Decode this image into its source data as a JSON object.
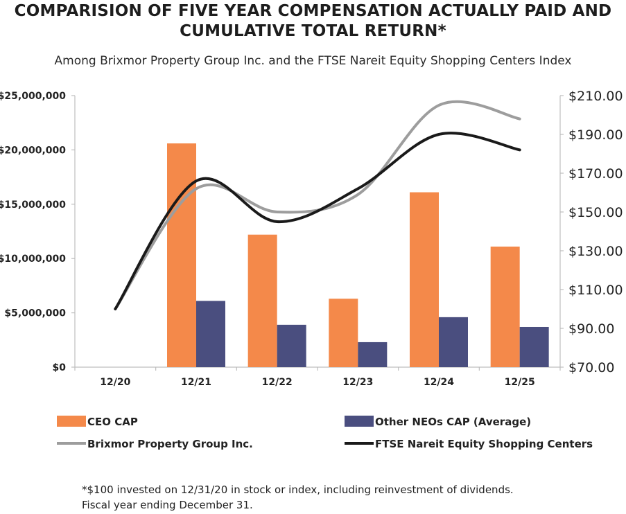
{
  "title_line1": "COMPARISION OF FIVE YEAR COMPENSATION ACTUALLY PAID AND",
  "title_line2": "CUMULATIVE TOTAL RETURN*",
  "subtitle": "Among Brixmor Property Group Inc. and the FTSE Nareit Equity Shopping Centers Index",
  "footnote_line1": "*$100 invested on 12/31/20 in stock or index, including reinvestment of dividends.",
  "footnote_line2": "Fiscal year ending December 31.",
  "chart_data": {
    "type": "bar",
    "title": "COMPARISION OF FIVE YEAR COMPENSATION ACTUALLY PAID AND CUMULATIVE TOTAL RETURN*",
    "categories": [
      "12/20",
      "12/21",
      "12/22",
      "12/23",
      "12/24",
      "12/25"
    ],
    "left_axis": {
      "ylim": [
        0,
        25000000
      ],
      "ticks": [
        0,
        5000000,
        10000000,
        15000000,
        20000000,
        25000000
      ],
      "tick_labels": [
        "$0",
        "$5,000,000",
        "$10,000,000",
        "$15,000,000",
        "$20,000,000",
        "$25,000,000"
      ]
    },
    "right_axis": {
      "ylim": [
        70,
        210
      ],
      "ticks": [
        70,
        90,
        110,
        130,
        150,
        170,
        190,
        210
      ],
      "tick_labels": [
        "$70.00",
        "$90.00",
        "$110.00",
        "$130.00",
        "$150.00",
        "$170.00",
        "$190.00",
        "$210.00"
      ]
    },
    "bar_series": [
      {
        "name": "CEO CAP",
        "color": "#f4894a",
        "values": [
          null,
          20600000,
          12200000,
          6300000,
          16100000,
          11100000
        ]
      },
      {
        "name": "Other NEOs CAP (Average)",
        "color": "#4a4e7f",
        "values": [
          null,
          6100000,
          3900000,
          2300000,
          4600000,
          3700000
        ]
      }
    ],
    "line_series": [
      {
        "name": "Brixmor Property Group Inc.",
        "color": "#9d9d9d",
        "values": [
          100,
          162,
          150,
          159,
          205,
          198
        ]
      },
      {
        "name": "FTSE Nareit Equity Shopping Centers",
        "color": "#1a1a1a",
        "values": [
          100,
          166,
          145,
          162,
          190,
          182
        ]
      }
    ],
    "legend": [
      {
        "name": "CEO CAP",
        "kind": "bar",
        "color": "#f4894a"
      },
      {
        "name": "Other NEOs CAP (Average)",
        "kind": "bar",
        "color": "#4a4e7f"
      },
      {
        "name": "Brixmor Property Group Inc.",
        "kind": "line",
        "color": "#9d9d9d"
      },
      {
        "name": "FTSE Nareit Equity Shopping Centers",
        "kind": "line",
        "color": "#1a1a1a"
      }
    ]
  }
}
